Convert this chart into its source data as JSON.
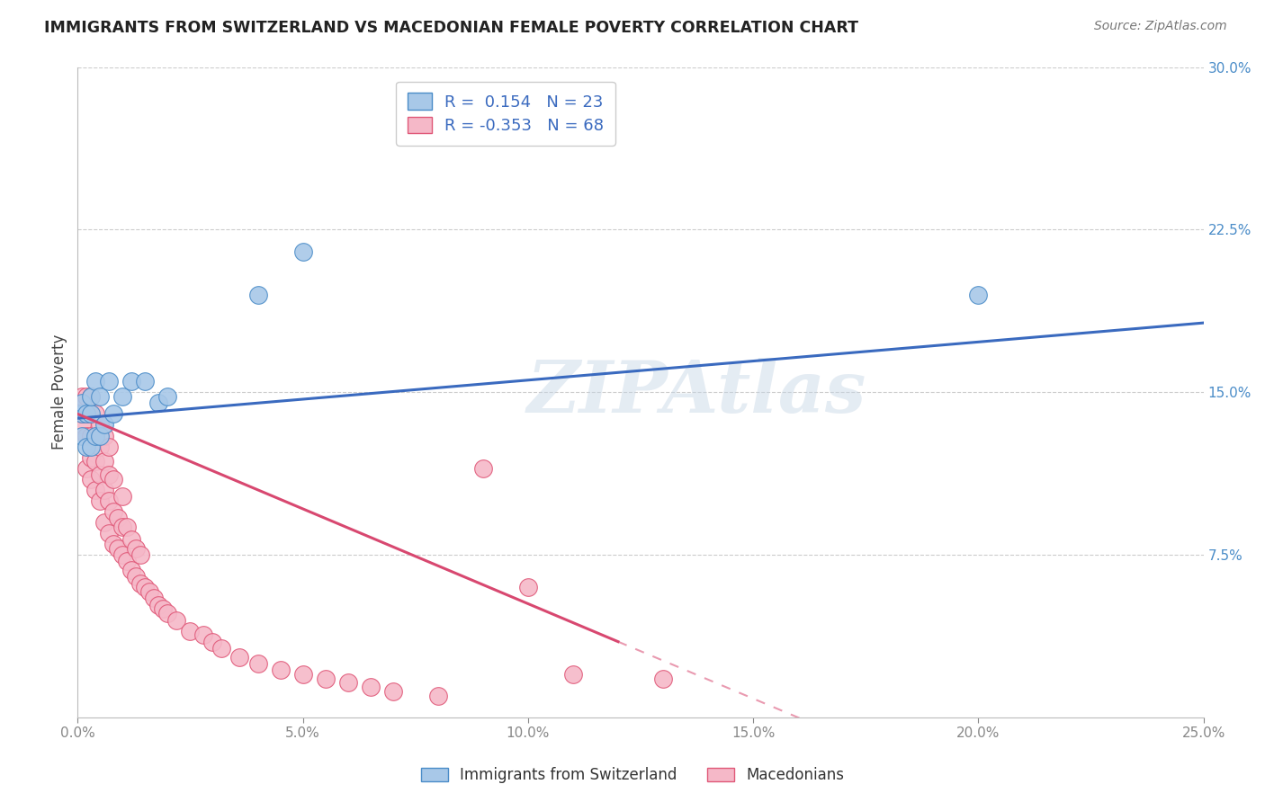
{
  "title": "IMMIGRANTS FROM SWITZERLAND VS MACEDONIAN FEMALE POVERTY CORRELATION CHART",
  "source": "Source: ZipAtlas.com",
  "ylabel": "Female Poverty",
  "xlim": [
    0,
    0.25
  ],
  "ylim": [
    0,
    0.3
  ],
  "watermark": "ZIPAtlas",
  "blue_R": 0.154,
  "blue_N": 23,
  "pink_R": -0.353,
  "pink_N": 68,
  "blue_color": "#a8c8e8",
  "pink_color": "#f5b8c8",
  "blue_edge_color": "#4a8cc8",
  "pink_edge_color": "#e05878",
  "blue_line_color": "#3a6abf",
  "pink_line_color": "#d84870",
  "blue_scatter_x": [
    0.001,
    0.001,
    0.001,
    0.002,
    0.002,
    0.003,
    0.003,
    0.003,
    0.004,
    0.004,
    0.005,
    0.005,
    0.006,
    0.007,
    0.008,
    0.01,
    0.012,
    0.015,
    0.018,
    0.02,
    0.04,
    0.05,
    0.2
  ],
  "blue_scatter_y": [
    0.14,
    0.13,
    0.145,
    0.125,
    0.14,
    0.125,
    0.14,
    0.148,
    0.13,
    0.155,
    0.13,
    0.148,
    0.135,
    0.155,
    0.14,
    0.148,
    0.155,
    0.155,
    0.145,
    0.148,
    0.195,
    0.215,
    0.195
  ],
  "pink_scatter_x": [
    0.001,
    0.001,
    0.001,
    0.002,
    0.002,
    0.002,
    0.002,
    0.003,
    0.003,
    0.003,
    0.003,
    0.003,
    0.004,
    0.004,
    0.004,
    0.004,
    0.005,
    0.005,
    0.005,
    0.005,
    0.006,
    0.006,
    0.006,
    0.006,
    0.007,
    0.007,
    0.007,
    0.007,
    0.008,
    0.008,
    0.008,
    0.009,
    0.009,
    0.01,
    0.01,
    0.01,
    0.011,
    0.011,
    0.012,
    0.012,
    0.013,
    0.013,
    0.014,
    0.014,
    0.015,
    0.016,
    0.017,
    0.018,
    0.019,
    0.02,
    0.022,
    0.025,
    0.028,
    0.03,
    0.032,
    0.036,
    0.04,
    0.045,
    0.05,
    0.055,
    0.06,
    0.065,
    0.07,
    0.08,
    0.09,
    0.1,
    0.11,
    0.13
  ],
  "pink_scatter_y": [
    0.135,
    0.14,
    0.148,
    0.115,
    0.13,
    0.14,
    0.148,
    0.11,
    0.12,
    0.13,
    0.14,
    0.148,
    0.105,
    0.118,
    0.13,
    0.14,
    0.1,
    0.112,
    0.125,
    0.135,
    0.09,
    0.105,
    0.118,
    0.13,
    0.085,
    0.1,
    0.112,
    0.125,
    0.08,
    0.095,
    0.11,
    0.078,
    0.092,
    0.075,
    0.088,
    0.102,
    0.072,
    0.088,
    0.068,
    0.082,
    0.065,
    0.078,
    0.062,
    0.075,
    0.06,
    0.058,
    0.055,
    0.052,
    0.05,
    0.048,
    0.045,
    0.04,
    0.038,
    0.035,
    0.032,
    0.028,
    0.025,
    0.022,
    0.02,
    0.018,
    0.016,
    0.014,
    0.012,
    0.01,
    0.115,
    0.06,
    0.02,
    0.018
  ],
  "pink_line_solid_end": 0.12,
  "pink_line_dash_end": 0.2
}
